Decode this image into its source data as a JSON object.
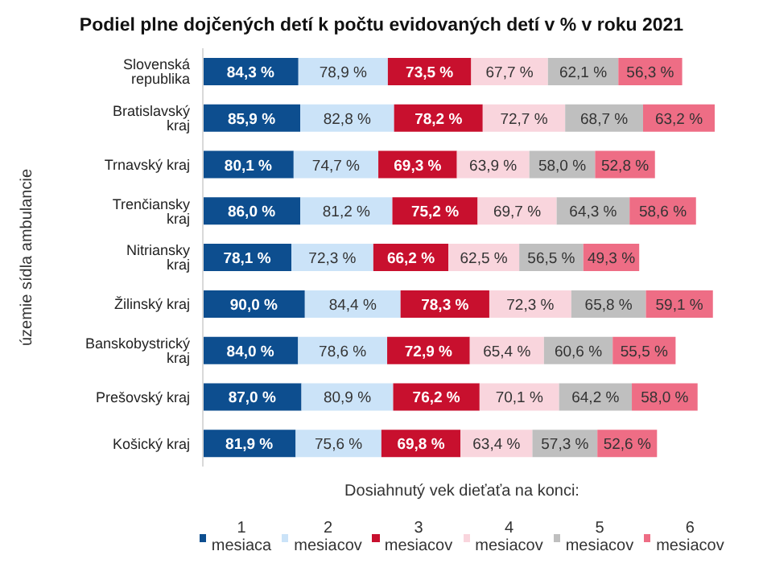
{
  "chart_data": {
    "type": "bar",
    "orientation": "horizontal",
    "stacked": true,
    "title": "Podiel plne dojčených detí k počtu evidovaných detí v % v roku 2021",
    "ylabel": "územie sídla ambulancie",
    "legend_title": "Dosiahnutý vek dieťaťa na konci:",
    "legend": "bottom",
    "grid": false,
    "categories": [
      "Slovenská republika",
      "Bratislavský kraj",
      "Trnavský kraj",
      "Trenčiansky kraj",
      "Nitriansky kraj",
      "Žilinský kraj",
      "Banskobystrický kraj",
      "Prešovský kraj",
      "Košický kraj"
    ],
    "series": [
      {
        "name": "1 mesiaca",
        "color": "#0d4e8f",
        "values": [
          84.3,
          85.9,
          80.1,
          86.0,
          78.1,
          90.0,
          84.0,
          87.0,
          81.9
        ],
        "value_labels": [
          "84,3 %",
          "85,9 %",
          "80,1 %",
          "86,0 %",
          "78,1 %",
          "90,0 %",
          "84,0 %",
          "87,0 %",
          "81,9 %"
        ]
      },
      {
        "name": "2 mesiacov",
        "color": "#cbe3f8",
        "values": [
          78.9,
          82.8,
          74.7,
          81.2,
          72.3,
          84.4,
          78.6,
          80.9,
          75.6
        ],
        "value_labels": [
          "78,9 %",
          "82,8 %",
          "74,7 %",
          "81,2 %",
          "72,3 %",
          "84,4 %",
          "78,6 %",
          "80,9 %",
          "75,6 %"
        ]
      },
      {
        "name": "3 mesiacov",
        "color": "#c8102e",
        "values": [
          73.5,
          78.2,
          69.3,
          75.2,
          66.2,
          78.3,
          72.9,
          76.2,
          69.8
        ],
        "value_labels": [
          "73,5 %",
          "78,2 %",
          "69,3 %",
          "75,2 %",
          "66,2 %",
          "78,3 %",
          "72,9 %",
          "76,2 %",
          "69,8 %"
        ]
      },
      {
        "name": "4 mesiacov",
        "color": "#f9d5dd",
        "values": [
          67.7,
          72.7,
          63.9,
          69.7,
          62.5,
          72.3,
          65.4,
          70.1,
          63.4
        ],
        "value_labels": [
          "67,7 %",
          "72,7 %",
          "63,9 %",
          "69,7 %",
          "62,5 %",
          "72,3 %",
          "65,4 %",
          "70,1 %",
          "63,4 %"
        ]
      },
      {
        "name": "5 mesiacov",
        "color": "#bfbfbf",
        "values": [
          62.1,
          68.7,
          58.0,
          64.3,
          56.5,
          65.8,
          60.6,
          64.2,
          57.3
        ],
        "value_labels": [
          "62,1 %",
          "68,7 %",
          "58,0 %",
          "64,3 %",
          "56,5 %",
          "65,8 %",
          "60,6 %",
          "64,2 %",
          "57,3 %"
        ]
      },
      {
        "name": "6 mesiacov",
        "color": "#ee6d85",
        "values": [
          56.3,
          63.2,
          52.8,
          58.6,
          49.3,
          59.1,
          55.5,
          58.0,
          52.6
        ],
        "value_labels": [
          "56,3 %",
          "63,2 %",
          "52,8 %",
          "58,6 %",
          "49,3 %",
          "59,1 %",
          "55,5 %",
          "58,0 %",
          "52,6 %"
        ]
      }
    ]
  }
}
